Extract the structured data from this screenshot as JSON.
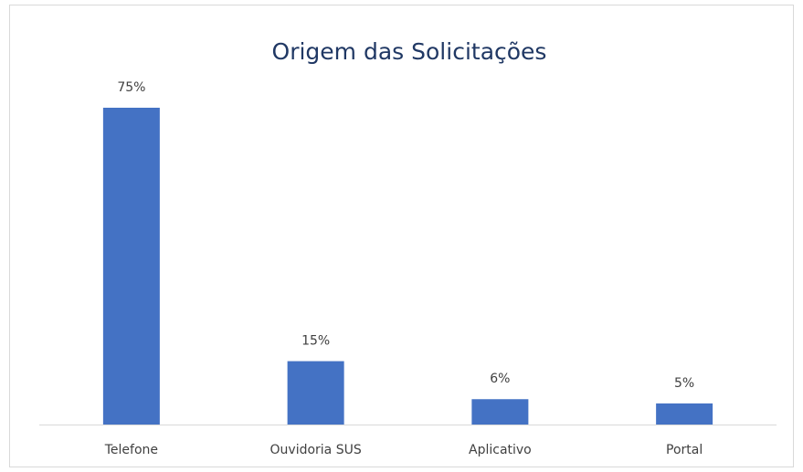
{
  "chart_data": {
    "type": "bar",
    "title": "Origem das Solicitações",
    "categories": [
      "Telefone",
      "Ouvidoria SUS",
      "Aplicativo",
      "Portal"
    ],
    "values": [
      75,
      15,
      6,
      5
    ],
    "value_labels": [
      "75%",
      "15%",
      "6%",
      "5%"
    ],
    "color": "#4472c4"
  }
}
